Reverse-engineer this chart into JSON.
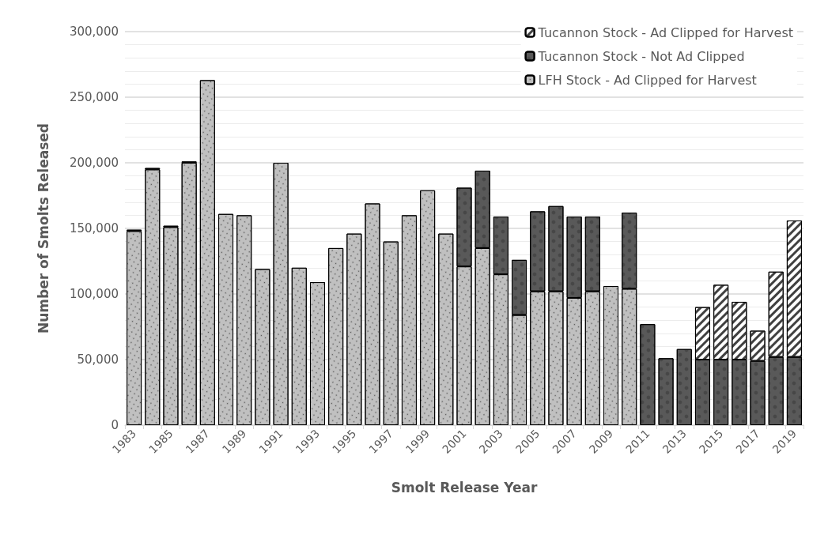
{
  "chart_data": {
    "type": "bar",
    "stacked": true,
    "xlabel": "Smolt Release Year",
    "ylabel": "Number of Smolts Released",
    "categories": [
      "1983",
      null,
      "1985",
      null,
      "1987",
      null,
      "1989",
      null,
      "1991",
      null,
      "1993",
      null,
      "1995",
      null,
      "1997",
      null,
      "1999",
      null,
      "2001",
      null,
      "2003",
      null,
      "2005",
      null,
      "2007",
      null,
      "2009",
      null,
      "2011",
      null,
      "2013",
      null,
      "2015",
      null,
      "2017",
      null,
      "2019"
    ],
    "series": [
      {
        "name": "LFH Stock - Ad Clipped for Harvest",
        "color": "#c0c0c0",
        "values": [
          148000,
          195000,
          151000,
          200000,
          263000,
          161000,
          160000,
          119000,
          200000,
          120000,
          109000,
          135000,
          146000,
          169000,
          140000,
          160000,
          179000,
          146000,
          121000,
          135000,
          115000,
          84000,
          102000,
          102000,
          97000,
          102000,
          106000,
          104000,
          null,
          null,
          null,
          null,
          null,
          null,
          null,
          null,
          null
        ]
      },
      {
        "name": "Tucannon Stock - Not Ad Clipped",
        "color": "#595959",
        "values": [
          1000,
          1000,
          1000,
          1000,
          null,
          null,
          null,
          null,
          null,
          null,
          null,
          null,
          null,
          null,
          null,
          null,
          null,
          null,
          60000,
          59000,
          44000,
          42000,
          61000,
          65000,
          62000,
          57000,
          null,
          58000,
          77000,
          51000,
          58000,
          50000,
          50000,
          50000,
          49000,
          52000,
          52000
        ]
      },
      {
        "name": "Tucannon Stock - Ad Clipped for Harvest",
        "color": "#ffffff",
        "values": [
          null,
          null,
          null,
          null,
          null,
          null,
          null,
          null,
          null,
          null,
          null,
          null,
          null,
          null,
          null,
          null,
          null,
          null,
          null,
          null,
          null,
          null,
          null,
          null,
          null,
          null,
          null,
          null,
          null,
          null,
          null,
          40000,
          57000,
          44000,
          23000,
          65000,
          104000
        ]
      }
    ],
    "ylim": [
      0,
      300000
    ],
    "yticks": [
      0,
      {
        "value": 50000,
        "label": "50,000"
      },
      {
        "value": 100000,
        "label": "100,000"
      },
      {
        "value": 150000,
        "label": "150,000"
      },
      {
        "value": 200000,
        "label": "200,000"
      },
      {
        "value": 250000,
        "label": "250,000"
      },
      {
        "value": 300000,
        "label": "300,000"
      }
    ],
    "grid": true,
    "legend": "top right"
  }
}
